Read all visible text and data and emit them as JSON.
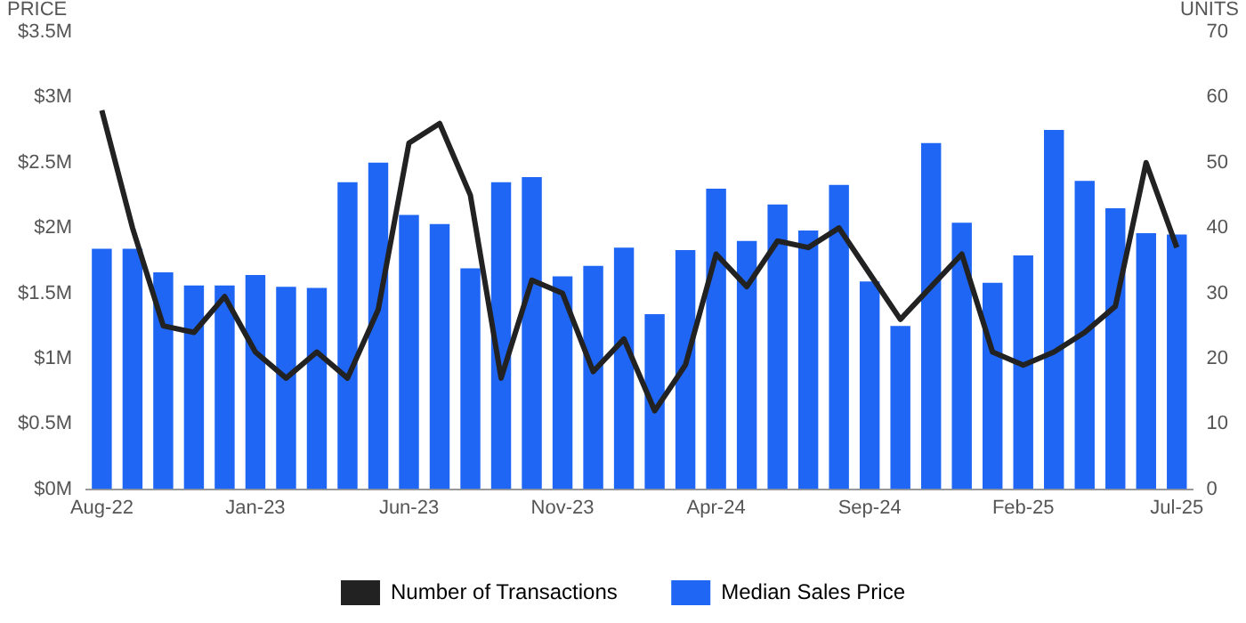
{
  "chart_data": {
    "type": "bar",
    "ylabel": "PRICE",
    "y2label": "UNITS",
    "categories": [
      "Aug-22",
      null,
      null,
      null,
      null,
      "Jan-23",
      null,
      null,
      null,
      null,
      "Jun-23",
      null,
      null,
      null,
      null,
      "Nov-23",
      null,
      null,
      null,
      null,
      "Apr-24",
      null,
      null,
      null,
      null,
      "Sep-24",
      null,
      null,
      null,
      null,
      "Feb-25",
      null,
      null,
      null,
      null,
      "Jul-25"
    ],
    "series": [
      {
        "name": "Number of Transactions",
        "type": "line",
        "axis": "y2",
        "color": "#222222",
        "values": [
          58,
          40,
          25,
          24,
          29.5,
          21,
          17,
          21,
          17,
          27.5,
          53,
          56,
          45,
          17,
          32,
          30,
          18,
          23,
          12,
          19,
          36,
          31,
          38,
          37,
          40,
          33,
          26,
          31,
          36,
          21,
          19,
          21,
          24,
          28,
          50,
          37
        ]
      },
      {
        "name": "Median Sales Price",
        "color": "#1f66f5",
        "values": [
          1.84,
          1.84,
          1.66,
          1.56,
          1.56,
          1.64,
          1.55,
          1.54,
          2.35,
          2.5,
          2.1,
          2.03,
          1.69,
          2.35,
          2.39,
          1.63,
          1.71,
          1.85,
          1.34,
          1.83,
          2.3,
          1.9,
          2.18,
          1.98,
          2.33,
          1.59,
          1.25,
          2.65,
          2.04,
          1.58,
          1.79,
          2.75,
          2.36,
          2.15,
          1.96,
          1.95
        ]
      }
    ],
    "ylim": [
      0,
      3.5
    ],
    "yticks": [
      {
        "value": 0,
        "label": "$0M"
      },
      {
        "value": 0.5,
        "label": "$0.5M"
      },
      {
        "value": 1,
        "label": "$1M"
      },
      {
        "value": 1.5,
        "label": "$1.5M"
      },
      {
        "value": 2,
        "label": "$2M"
      },
      {
        "value": 2.5,
        "label": "$2.5M"
      },
      {
        "value": 3,
        "label": "$3M"
      },
      {
        "value": 3.5,
        "label": "$3.5M"
      }
    ],
    "y2lim": [
      0,
      70
    ],
    "y2ticks": [
      0,
      10,
      20,
      30,
      40,
      50,
      60,
      70
    ],
    "grid": false,
    "legend": "bottom",
    "marker": "none"
  }
}
